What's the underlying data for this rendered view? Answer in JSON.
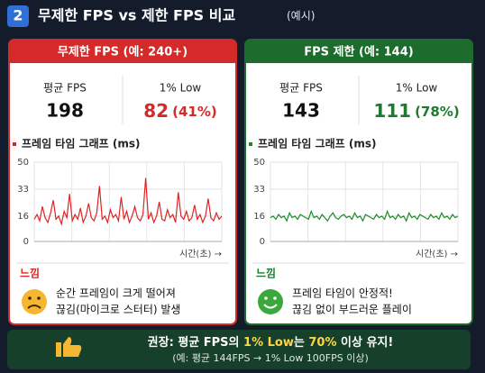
{
  "header": {
    "number": "2",
    "title": "무제한 FPS vs 제한 FPS 비교",
    "note": "(예시)"
  },
  "panels": [
    {
      "title": "무제한 FPS (예: 240+)",
      "avg_label": "평균 FPS",
      "avg": "198",
      "low_label": "1% Low",
      "low": "82",
      "low_pct": "(41%)",
      "feel_label": "느낌",
      "feel_lines": [
        "순간 프레임이 크게 떨어져",
        "끊김(마이크로 스터터) 발생"
      ]
    },
    {
      "title": "FPS 제한 (예: 144)",
      "avg_label": "평균 FPS",
      "avg": "143",
      "low_label": "1% Low",
      "low": "111",
      "low_pct": "(78%)",
      "feel_label": "느낌",
      "feel_lines": [
        "프레임 타임이 안정적!",
        "끊김 없이 부드러운 플레이"
      ]
    }
  ],
  "chart_data": [
    {
      "type": "line",
      "title": "프레임 타임 그래프 (ms)",
      "x_label": "시간(초) →",
      "color": "#e02424",
      "ylim": [
        0,
        50
      ],
      "yticks": [
        0,
        16,
        33,
        50
      ],
      "grid": true,
      "values": [
        14,
        17,
        13,
        22,
        15,
        12,
        18,
        26,
        14,
        16,
        11,
        19,
        15,
        30,
        13,
        17,
        14,
        21,
        12,
        16,
        24,
        15,
        13,
        18,
        35,
        14,
        16,
        12,
        20,
        15,
        17,
        13,
        28,
        14,
        19,
        12,
        16,
        22,
        15,
        13,
        17,
        40,
        14,
        18,
        12,
        16,
        25,
        14,
        13,
        20,
        15,
        17,
        12,
        31,
        16,
        14,
        19,
        13,
        15,
        23,
        14,
        17,
        12,
        16,
        27,
        15,
        13,
        18,
        14,
        16
      ]
    },
    {
      "type": "line",
      "title": "프레임 타임 그래프 (ms)",
      "x_label": "시간(초) →",
      "color": "#1f8a2a",
      "ylim": [
        0,
        50
      ],
      "yticks": [
        0,
        16,
        33,
        50
      ],
      "grid": true,
      "values": [
        15,
        16,
        14,
        17,
        15,
        16,
        13,
        18,
        15,
        16,
        14,
        17,
        16,
        15,
        14,
        19,
        15,
        16,
        14,
        17,
        15,
        13,
        16,
        18,
        15,
        14,
        16,
        17,
        15,
        16,
        14,
        18,
        15,
        16,
        13,
        17,
        16,
        15,
        14,
        17,
        15,
        16,
        14,
        19,
        15,
        16,
        14,
        17,
        15,
        16,
        13,
        18,
        15,
        16,
        14,
        17,
        16,
        15,
        14,
        17,
        15,
        16,
        14,
        18,
        15,
        16,
        14,
        17,
        15,
        16
      ]
    }
  ],
  "footer": {
    "segments": [
      "권장: 평균 FPS의 ",
      "1% Low",
      "는 ",
      "70%",
      " 이상 유지!"
    ],
    "example": "(예: 평균 144FPS → 1% Low 100FPS 이상)"
  }
}
